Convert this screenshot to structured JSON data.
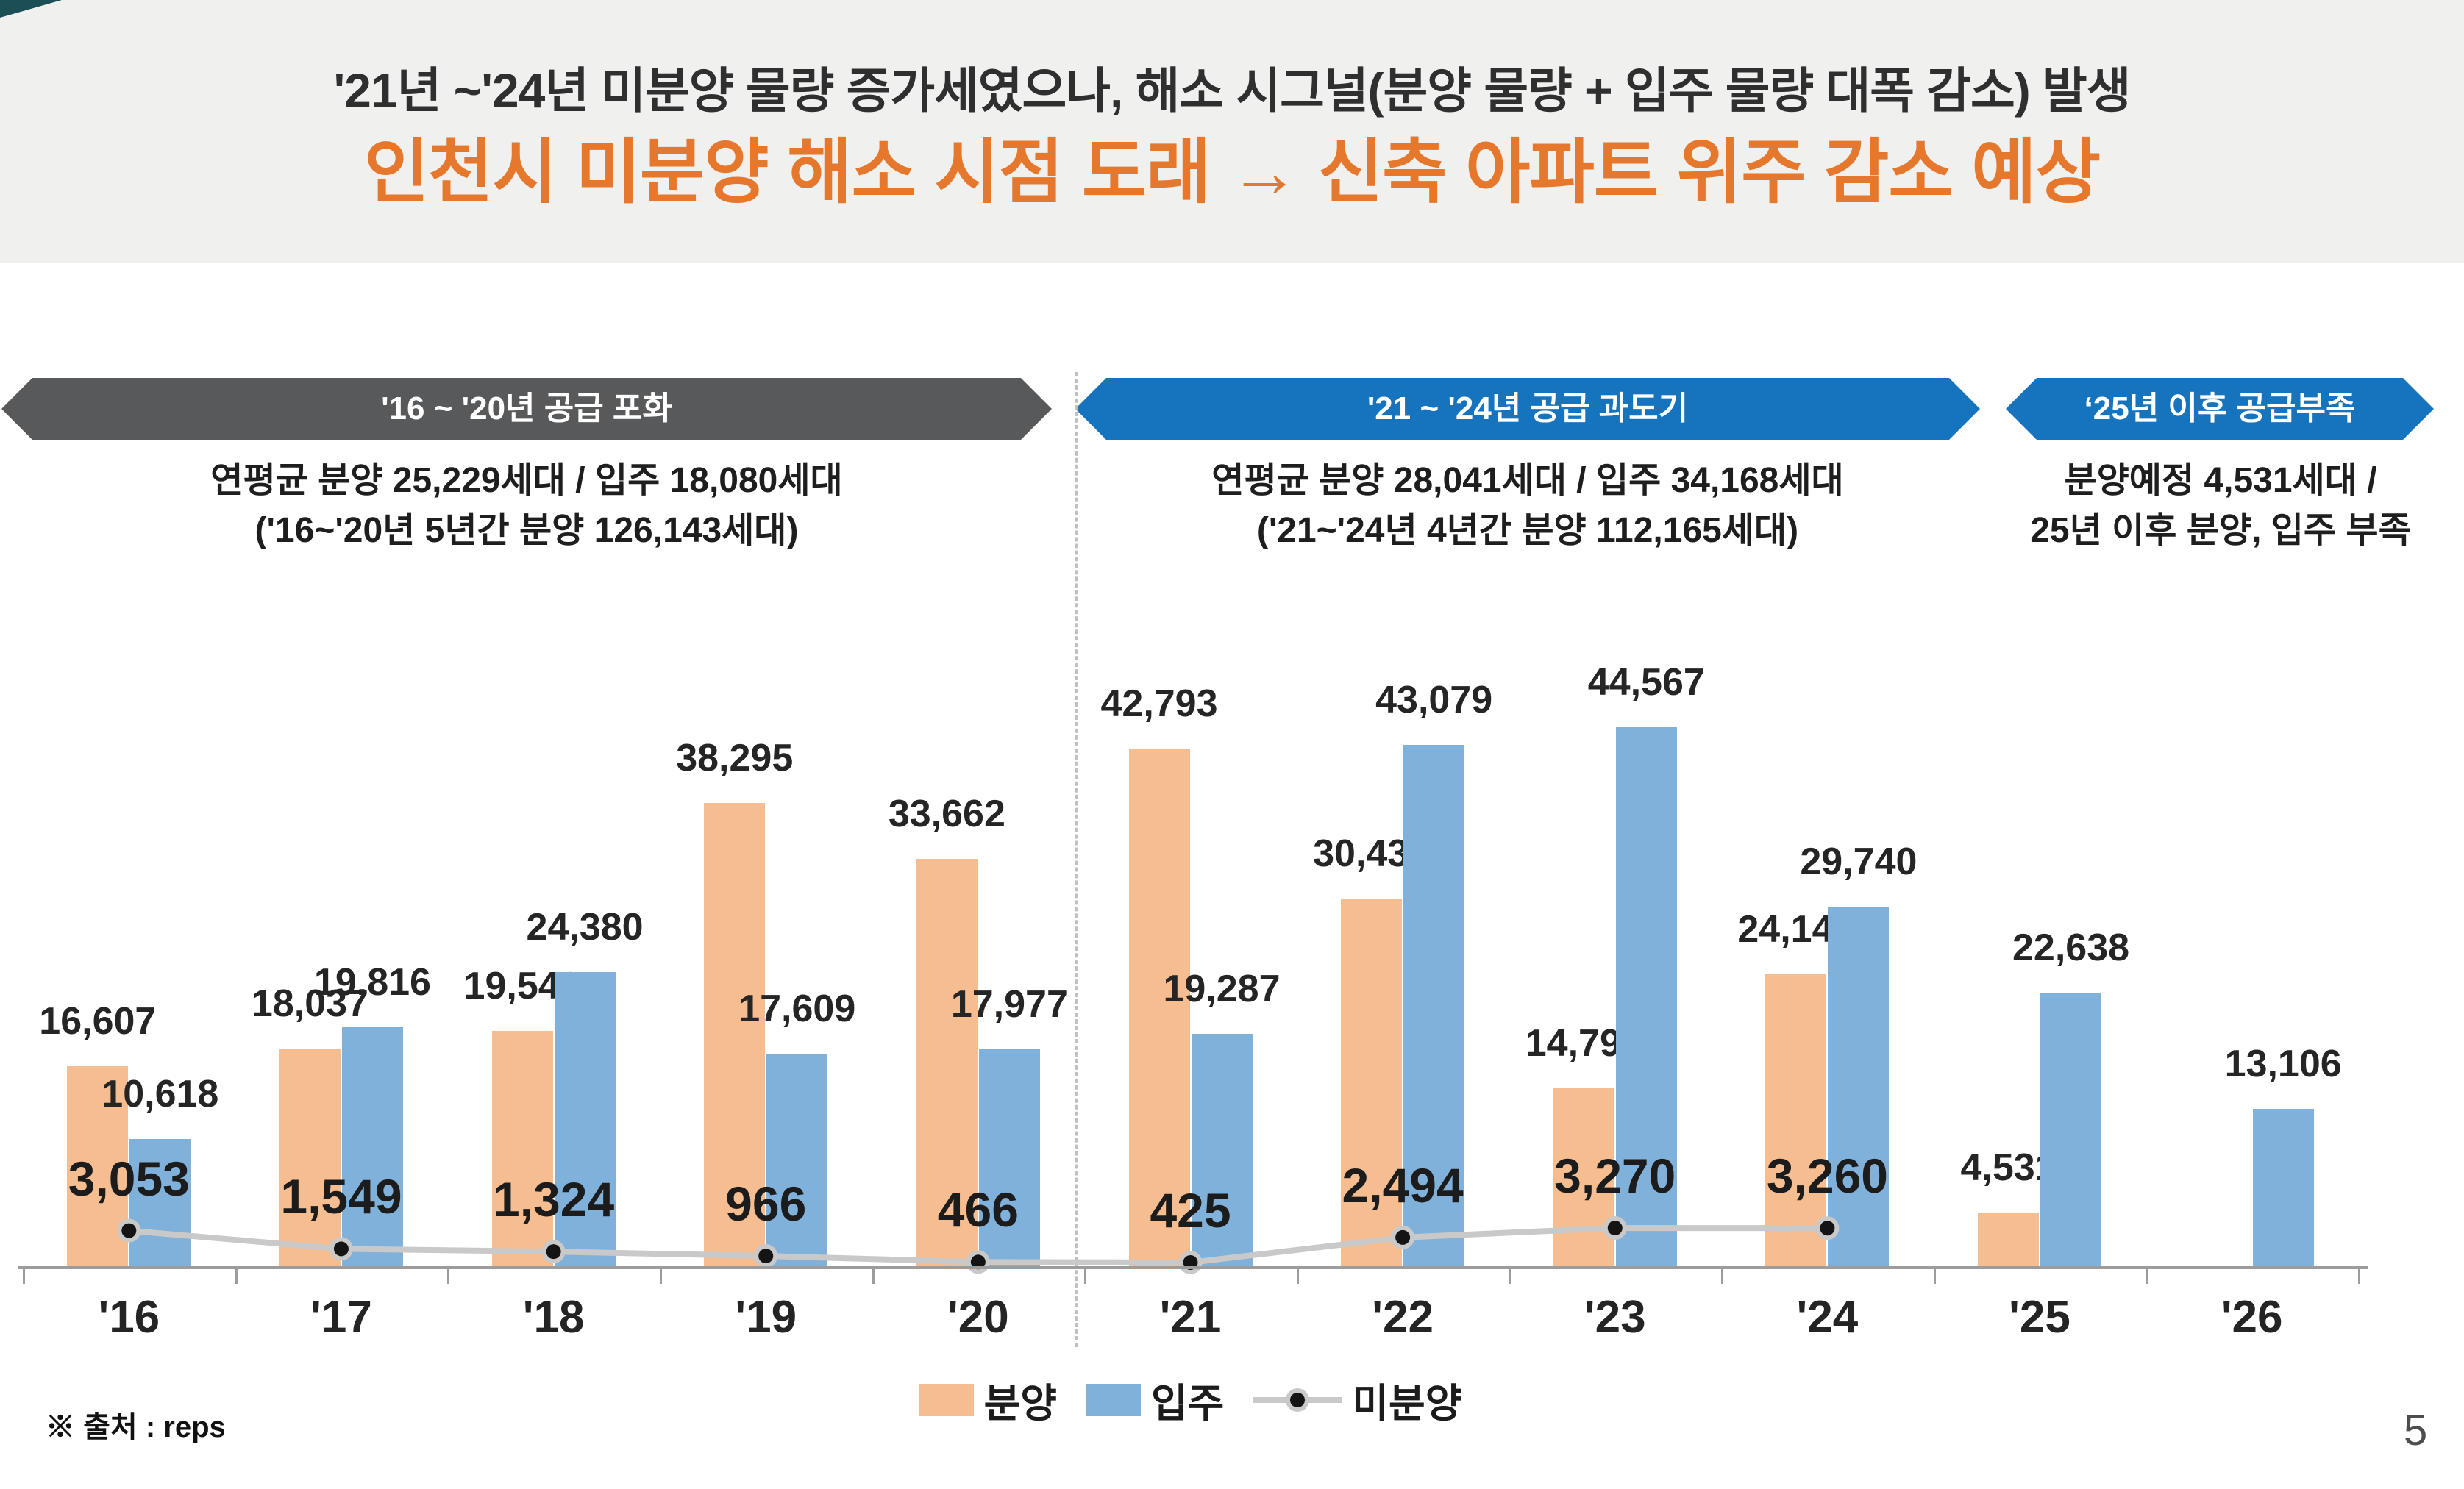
{
  "header": {
    "subtitle": "'21년 ~'24년 미분양 물량 증가세였으나, 해소 시그널(분양 물량 + 입주 물량 대폭 감소) 발생",
    "title": "인천시 미분양 해소 시점 도래 → 신축 아파트 위주 감소 예상",
    "title_color": "#E5782D",
    "band_color": "#F0F0EF",
    "corner_accent_color": "#1C4F55"
  },
  "phases": [
    {
      "banner": "'16 ~ '20년 공급 포화",
      "banner_color": "#58595B",
      "desc_line1": "연평균 분양 25,229세대 / 입주 18,080세대",
      "desc_line2": "('16~'20년 5년간 분양 126,143세대)"
    },
    {
      "banner": "'21 ~ '24년 공급 과도기",
      "banner_color": "#1673BE",
      "desc_line1": "연평균 분양 28,041세대 / 입주 34,168세대",
      "desc_line2": "('21~'24년 4년간 분양 112,165세대)"
    },
    {
      "banner": "‘25년 이후 공급부족",
      "banner_color": "#1673BE",
      "desc_line1": "분양예정 4,531세대 /",
      "desc_line2": "25년 이후 분양, 입주 부족"
    }
  ],
  "chart_data": {
    "type": "bar",
    "categories": [
      "'16",
      "'17",
      "'18",
      "'19",
      "'20",
      "'21",
      "'22",
      "'23",
      "'24",
      "'25",
      "'26"
    ],
    "series": [
      {
        "name": "분양",
        "type": "bar",
        "color": "#F6BD90",
        "values": [
          16607,
          18037,
          19542,
          38295,
          33662,
          42793,
          30430,
          14793,
          24149,
          4531,
          null
        ]
      },
      {
        "name": "입주",
        "type": "bar",
        "color": "#7FB1DB",
        "values": [
          10618,
          19816,
          24380,
          17609,
          17977,
          19287,
          43079,
          44567,
          29740,
          22638,
          13106
        ]
      },
      {
        "name": "미분양",
        "type": "line",
        "color": "#C9C9C9",
        "dot_color": "#141414",
        "values": [
          3053,
          1549,
          1324,
          966,
          466,
          425,
          2494,
          3270,
          3260,
          null,
          null
        ]
      }
    ],
    "ylim": [
      0,
      46900
    ],
    "grid": false,
    "legend_position": "bottom",
    "data_labels": true
  },
  "footer": {
    "source": "※ 출처 : reps",
    "page": "5"
  }
}
